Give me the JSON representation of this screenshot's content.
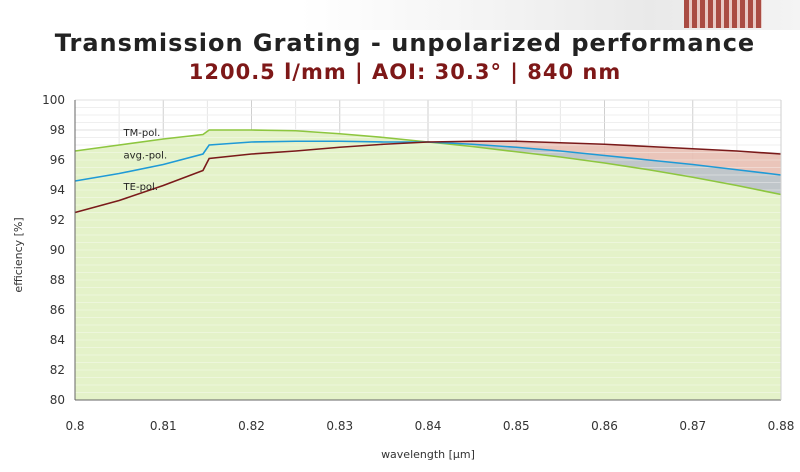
{
  "chart_data": {
    "type": "line",
    "title": "Transmission Grating - unpolarized performance",
    "subtitle": "1200.5 l/mm | AOI: 30.3° | 840 nm",
    "xlabel": "wavelength [µm]",
    "ylabel": "efficiency [%]",
    "xlim": [
      0.8,
      0.88
    ],
    "ylim": [
      80,
      100
    ],
    "xticks": [
      "0.8",
      "0.81",
      "0.82",
      "0.83",
      "0.84",
      "0.85",
      "0.86",
      "0.87",
      "0.88"
    ],
    "yticks": [
      "80",
      "82",
      "84",
      "86",
      "88",
      "90",
      "92",
      "94",
      "96",
      "98",
      "100"
    ],
    "grid": true,
    "series": [
      {
        "name": "TM-pol.",
        "color": "#8dc63f",
        "fill": "#e4f2c9",
        "points": [
          [
            0.8,
            96.6
          ],
          [
            0.805,
            97.0
          ],
          [
            0.81,
            97.4
          ],
          [
            0.8145,
            97.7
          ],
          [
            0.8152,
            98.0
          ],
          [
            0.82,
            98.0
          ],
          [
            0.825,
            97.95
          ],
          [
            0.83,
            97.75
          ],
          [
            0.835,
            97.5
          ],
          [
            0.84,
            97.2
          ],
          [
            0.845,
            96.9
          ],
          [
            0.85,
            96.55
          ],
          [
            0.855,
            96.2
          ],
          [
            0.86,
            95.8
          ],
          [
            0.865,
            95.35
          ],
          [
            0.87,
            94.85
          ],
          [
            0.875,
            94.3
          ],
          [
            0.88,
            93.7
          ]
        ]
      },
      {
        "name": "avg.-pol.",
        "color": "#1f9ad6",
        "points": [
          [
            0.8,
            94.6
          ],
          [
            0.805,
            95.1
          ],
          [
            0.81,
            95.7
          ],
          [
            0.8145,
            96.4
          ],
          [
            0.8152,
            97.0
          ],
          [
            0.82,
            97.2
          ],
          [
            0.825,
            97.25
          ],
          [
            0.83,
            97.25
          ],
          [
            0.835,
            97.2
          ],
          [
            0.84,
            97.2
          ],
          [
            0.845,
            97.05
          ],
          [
            0.85,
            96.85
          ],
          [
            0.855,
            96.6
          ],
          [
            0.86,
            96.3
          ],
          [
            0.865,
            96.0
          ],
          [
            0.87,
            95.7
          ],
          [
            0.875,
            95.35
          ],
          [
            0.88,
            95.0
          ]
        ]
      },
      {
        "name": "TE-pol.",
        "color": "#7a1a1a",
        "fill": "#e8bfb2",
        "points": [
          [
            0.8,
            92.5
          ],
          [
            0.805,
            93.3
          ],
          [
            0.81,
            94.3
          ],
          [
            0.8145,
            95.3
          ],
          [
            0.8152,
            96.1
          ],
          [
            0.82,
            96.4
          ],
          [
            0.825,
            96.6
          ],
          [
            0.83,
            96.85
          ],
          [
            0.835,
            97.05
          ],
          [
            0.84,
            97.2
          ],
          [
            0.845,
            97.25
          ],
          [
            0.85,
            97.25
          ],
          [
            0.855,
            97.15
          ],
          [
            0.86,
            97.05
          ],
          [
            0.865,
            96.9
          ],
          [
            0.87,
            96.75
          ],
          [
            0.875,
            96.6
          ],
          [
            0.88,
            96.4
          ]
        ]
      }
    ]
  }
}
